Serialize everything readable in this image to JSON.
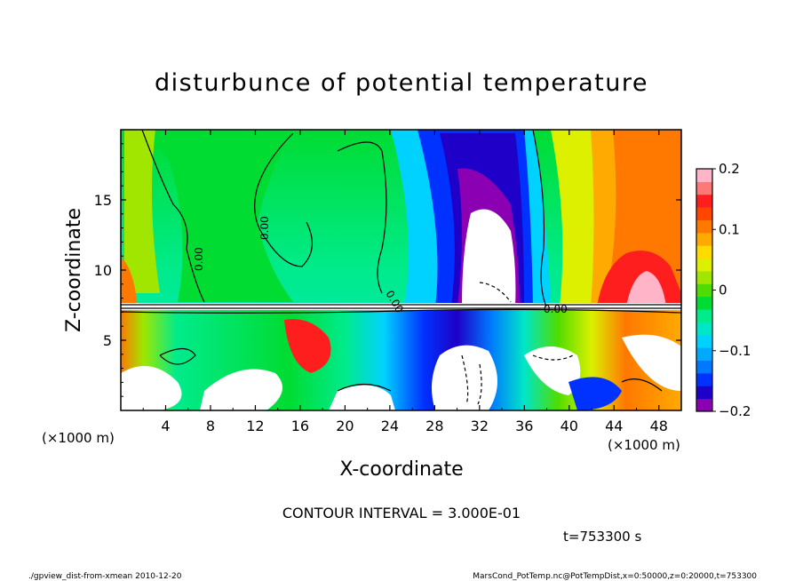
{
  "chart_data": {
    "type": "heatmap",
    "title": "disturbunce of potential temperature",
    "xlabel": "X-coordinate",
    "ylabel": "Z-coordinate",
    "x_unit_left": "(×1000 m)",
    "x_unit_right": "(×1000 m)",
    "xlim": [
      0,
      50
    ],
    "ylim": [
      0,
      20
    ],
    "xticks": [
      4,
      8,
      12,
      16,
      20,
      24,
      28,
      32,
      36,
      40,
      44,
      48
    ],
    "yticks": [
      5,
      10,
      15
    ],
    "colorbar": {
      "min": -0.2,
      "max": 0.2,
      "ticks": [
        0.2,
        0.1,
        0,
        -0.1,
        -0.2
      ],
      "tick_labels": [
        "0.2",
        "0.1",
        "0",
        "−0.1",
        "−0.2"
      ],
      "colors": [
        "#8c00b4",
        "#1e00c8",
        "#0032ff",
        "#0078ff",
        "#00aaff",
        "#00d2ff",
        "#00e6c8",
        "#00eb8c",
        "#00dc32",
        "#50dc00",
        "#a0e600",
        "#dcf000",
        "#ffdc00",
        "#ffaa00",
        "#ff7800",
        "#ff4600",
        "#ff1e1e",
        "#ff7878",
        "#ffb4c8"
      ]
    },
    "contour_label": "0.00",
    "contour_interval": "CONTOUR INTERVAL = 3.000E-01",
    "time_label": "t=753300 s"
  },
  "footer": {
    "left": "./gpview_dist-from-xmean  2010-12-20",
    "right": "MarsCond_PotTemp.nc@PotTempDist,x=0:50000,z=0:20000,t=753300"
  }
}
